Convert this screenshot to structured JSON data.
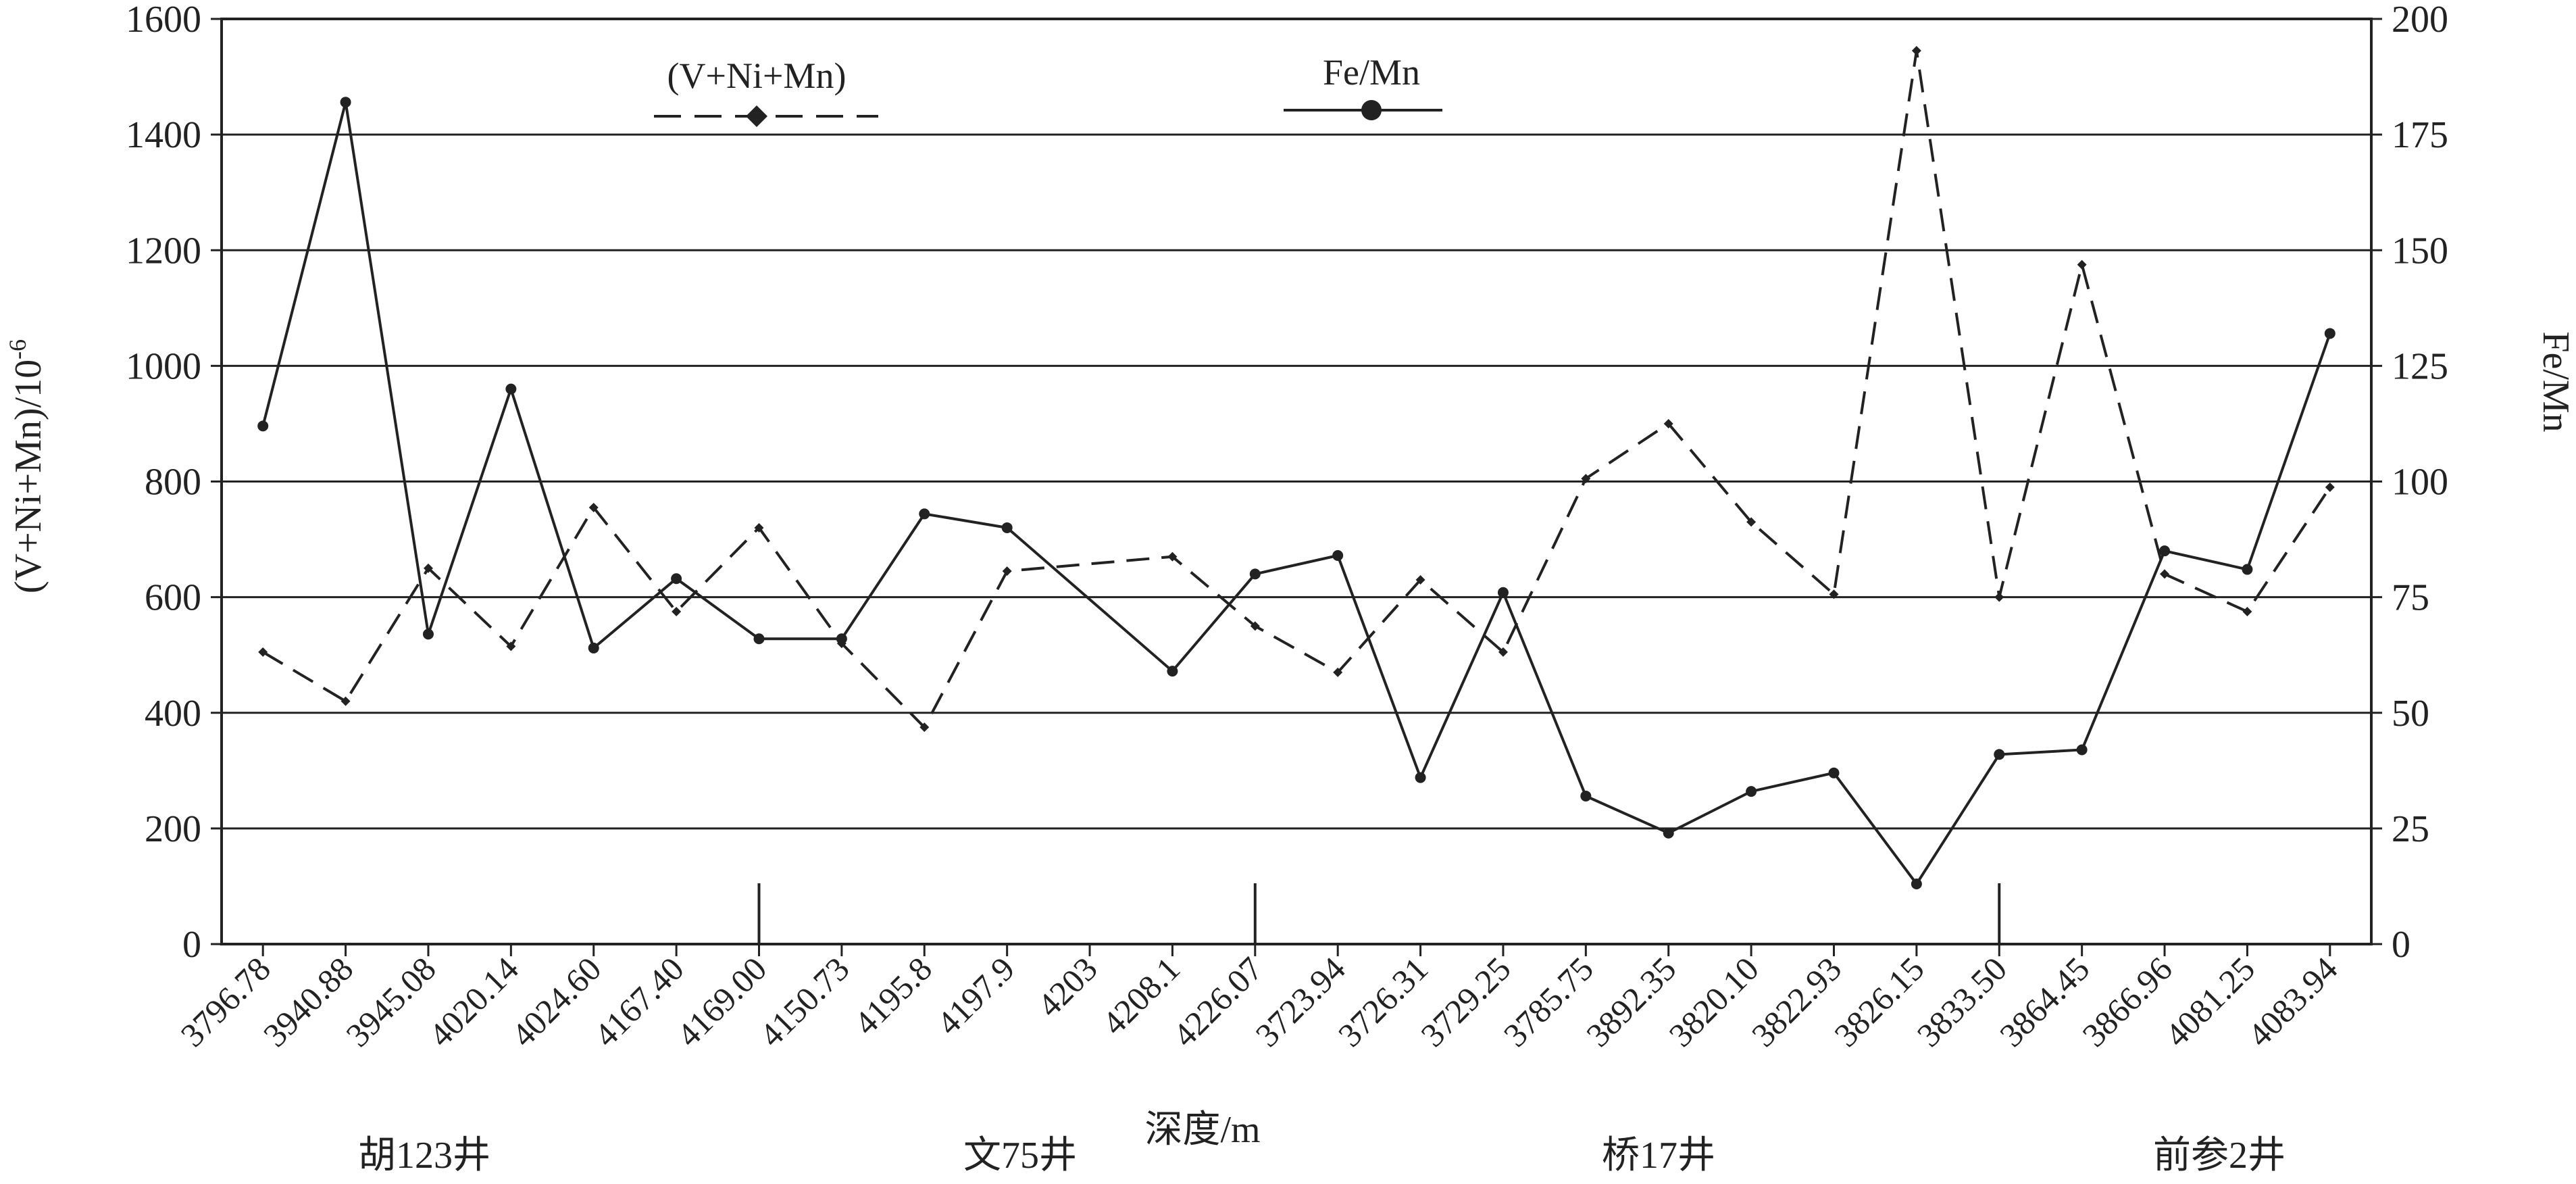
{
  "chart_data": {
    "type": "line",
    "xlabel": "深度/m",
    "ylabel_left": "(V+Ni+Mn)/10",
    "ylabel_left_superscript": "-6",
    "ylabel_right": "Fe/Mn",
    "ylim_left": [
      0,
      1600
    ],
    "ylim_right": [
      0,
      200
    ],
    "yticks_left": [
      0,
      200,
      400,
      600,
      800,
      1000,
      1200,
      1400,
      1600
    ],
    "yticks_right": [
      0,
      25,
      50,
      75,
      100,
      125,
      150,
      175,
      200
    ],
    "grid": "horizontal",
    "legend_position": "top-center",
    "categories": [
      "3796.78",
      "3940.88",
      "3945.08",
      "4020.14",
      "4024.60",
      "4167.40",
      "4169.00",
      "4150.73",
      "4195.8",
      "4197.9",
      "4203",
      "4208.1",
      "4226.07",
      "3723.94",
      "3726.31",
      "3729.25",
      "3785.75",
      "3892.35",
      "3820.10",
      "3822.93",
      "3826.15",
      "3833.50",
      "3864.45",
      "3866.96",
      "4081.25",
      "4083.94"
    ],
    "series": [
      {
        "name": "(V+Ni+Mn)",
        "axis": "left",
        "style": "dashed",
        "marker": "diamond",
        "color": "#222222",
        "values": [
          505,
          420,
          650,
          515,
          755,
          575,
          720,
          520,
          375,
          645,
          null,
          670,
          550,
          470,
          630,
          505,
          805,
          900,
          730,
          605,
          1545,
          600,
          1175,
          640,
          575,
          790
        ]
      },
      {
        "name": "Fe/Mn",
        "axis": "right",
        "style": "solid",
        "marker": "circle",
        "color": "#222222",
        "values": [
          112,
          182,
          67,
          120,
          64,
          79,
          66,
          66,
          93,
          90,
          null,
          59,
          80,
          84,
          36,
          76,
          32,
          24,
          33,
          37,
          13,
          41,
          42,
          85,
          81,
          132
        ]
      }
    ],
    "wells": [
      {
        "label": "胡123井"
      },
      {
        "label": "文75井"
      },
      {
        "label": "桥17井"
      },
      {
        "label": "前参2井"
      }
    ]
  }
}
